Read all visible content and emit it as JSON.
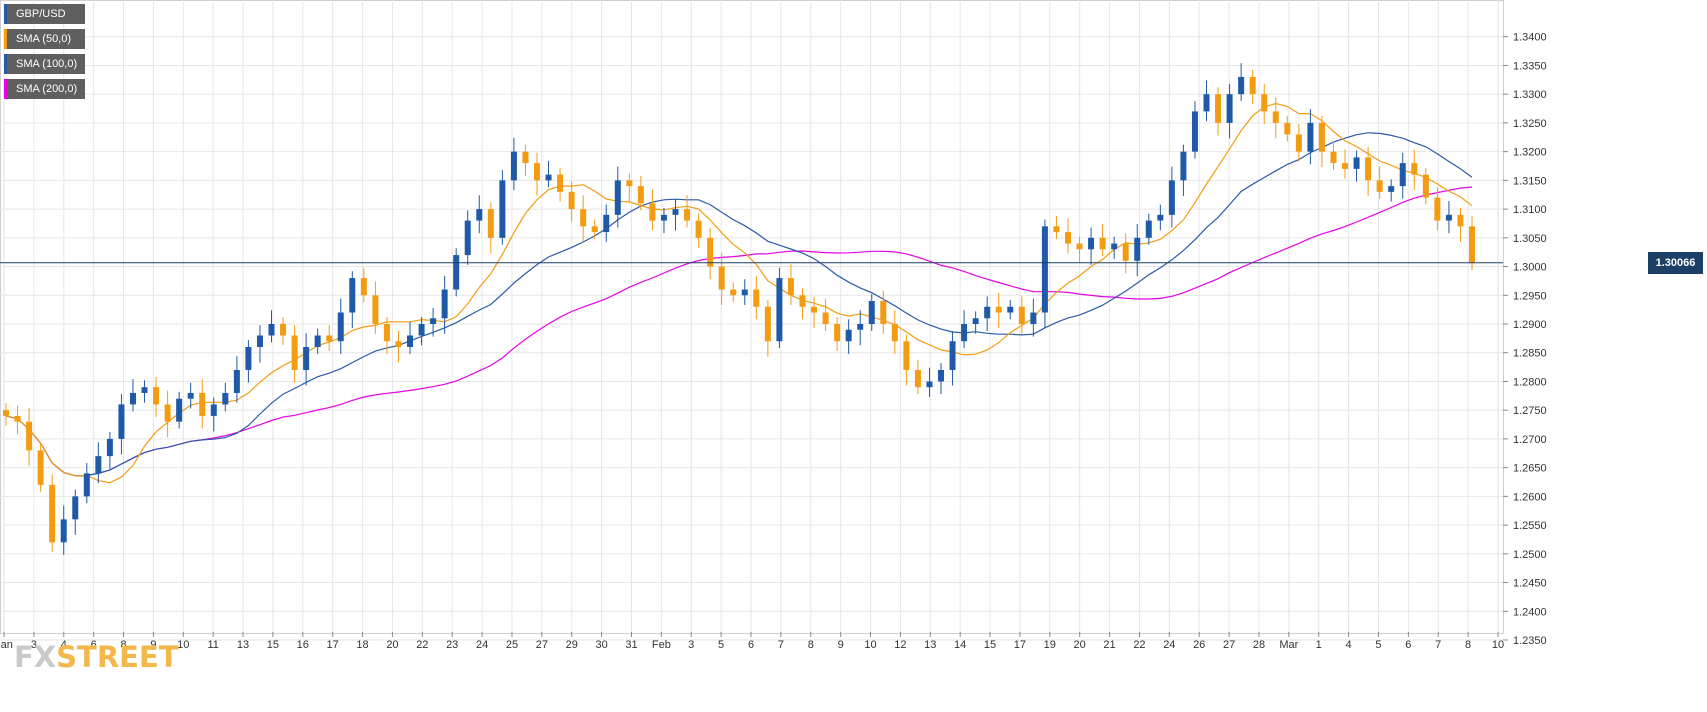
{
  "legend": [
    {
      "label": "GBP/USD",
      "color": "#2b5aa8"
    },
    {
      "label": "SMA (50,0)",
      "color": "#f39c12"
    },
    {
      "label": "SMA (100,0)",
      "color": "#2b5aa8"
    },
    {
      "label": "SMA (200,0)",
      "color": "#e600e6"
    }
  ],
  "watermark": {
    "part1": "FX",
    "part2": "STREET"
  },
  "colors": {
    "up": "#1f5aa8",
    "down": "#f39c12",
    "sma50": "#f39c12",
    "sma100": "#2b5aa8",
    "sma200": "#e600e6",
    "grid": "#e6e6e6",
    "price_line": "#1c3f66"
  },
  "chart_data": {
    "type": "candlestick",
    "title": "",
    "pair": "GBP/USD",
    "ylim": [
      1.235,
      1.345
    ],
    "y_ticks": [
      "1.2350",
      "1.2400",
      "1.2450",
      "1.2500",
      "1.2550",
      "1.2600",
      "1.2650",
      "1.2700",
      "1.2750",
      "1.2800",
      "1.2850",
      "1.2900",
      "1.2950",
      "1.3000",
      "1.3050",
      "1.3100",
      "1.3150",
      "1.3200",
      "1.3250",
      "1.3300",
      "1.3350",
      "1.3400"
    ],
    "x_ticks": [
      "Jan",
      "3",
      "4",
      "6",
      "8",
      "9",
      "10",
      "11",
      "13",
      "15",
      "16",
      "17",
      "18",
      "20",
      "22",
      "23",
      "24",
      "25",
      "27",
      "29",
      "30",
      "31",
      "Feb",
      "3",
      "5",
      "6",
      "7",
      "8",
      "9",
      "10",
      "12",
      "13",
      "14",
      "15",
      "17",
      "19",
      "20",
      "21",
      "22",
      "24",
      "26",
      "27",
      "28",
      "Mar",
      "1",
      "4",
      "5",
      "6",
      "7",
      "8",
      "10"
    ],
    "current_price": 1.30066,
    "current_price_label": "1.30066",
    "closes": [
      1.274,
      1.273,
      1.268,
      1.262,
      1.252,
      1.256,
      1.26,
      1.264,
      1.267,
      1.27,
      1.276,
      1.278,
      1.279,
      1.276,
      1.273,
      1.277,
      1.278,
      1.274,
      1.276,
      1.278,
      1.282,
      1.286,
      1.288,
      1.29,
      1.288,
      1.282,
      1.286,
      1.288,
      1.287,
      1.292,
      1.298,
      1.295,
      1.29,
      1.287,
      1.286,
      1.288,
      1.29,
      1.291,
      1.296,
      1.302,
      1.308,
      1.31,
      1.305,
      1.315,
      1.32,
      1.318,
      1.315,
      1.316,
      1.313,
      1.31,
      1.307,
      1.306,
      1.309,
      1.315,
      1.314,
      1.311,
      1.308,
      1.309,
      1.31,
      1.308,
      1.305,
      1.3,
      1.296,
      1.295,
      1.296,
      1.293,
      1.287,
      1.298,
      1.295,
      1.293,
      1.292,
      1.29,
      1.287,
      1.289,
      1.29,
      1.294,
      1.29,
      1.287,
      1.282,
      1.279,
      1.28,
      1.282,
      1.287,
      1.29,
      1.291,
      1.293,
      1.292,
      1.293,
      1.29,
      1.292,
      1.307,
      1.306,
      1.304,
      1.303,
      1.305,
      1.303,
      1.304,
      1.301,
      1.305,
      1.308,
      1.309,
      1.315,
      1.32,
      1.327,
      1.33,
      1.325,
      1.33,
      1.333,
      1.33,
      1.327,
      1.325,
      1.323,
      1.32,
      1.325,
      1.32,
      1.318,
      1.317,
      1.319,
      1.315,
      1.313,
      1.314,
      1.318,
      1.316,
      1.312,
      1.308,
      1.309,
      1.307,
      1.3006
    ]
  }
}
